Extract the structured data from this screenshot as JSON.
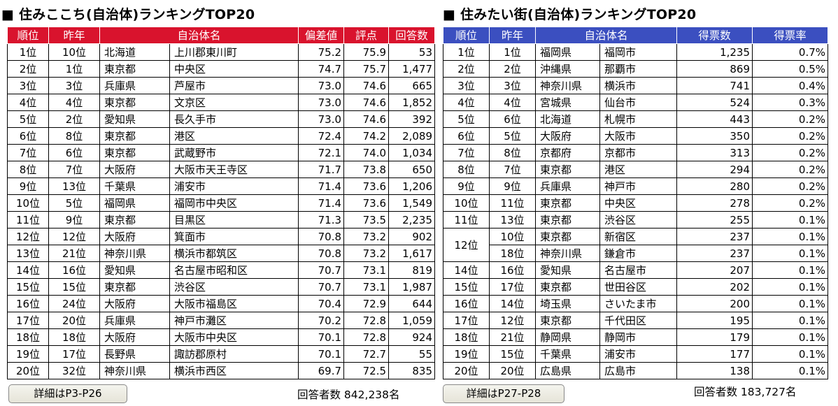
{
  "left": {
    "title": "■ 住みここち(自治体)ランキングTOP20",
    "headers": [
      "順位",
      "昨年",
      "自治体名",
      "偏差値",
      "評点",
      "回答数"
    ],
    "rows": [
      {
        "rank": "1位",
        "prev": "10位",
        "pref": "北海道",
        "city": "上川郡東川町",
        "dev": "75.2",
        "score": "75.9",
        "count": "53"
      },
      {
        "rank": "2位",
        "prev": "1位",
        "pref": "東京都",
        "city": "中央区",
        "dev": "74.7",
        "score": "75.7",
        "count": "1,477"
      },
      {
        "rank": "3位",
        "prev": "3位",
        "pref": "兵庫県",
        "city": "芦屋市",
        "dev": "73.0",
        "score": "74.6",
        "count": "665"
      },
      {
        "rank": "4位",
        "prev": "4位",
        "pref": "東京都",
        "city": "文京区",
        "dev": "73.0",
        "score": "74.6",
        "count": "1,852"
      },
      {
        "rank": "5位",
        "prev": "2位",
        "pref": "愛知県",
        "city": "長久手市",
        "dev": "73.0",
        "score": "74.6",
        "count": "392"
      },
      {
        "rank": "6位",
        "prev": "8位",
        "pref": "東京都",
        "city": "港区",
        "dev": "72.4",
        "score": "74.2",
        "count": "2,089"
      },
      {
        "rank": "7位",
        "prev": "6位",
        "pref": "東京都",
        "city": "武蔵野市",
        "dev": "72.1",
        "score": "74.0",
        "count": "1,034"
      },
      {
        "rank": "8位",
        "prev": "7位",
        "pref": "大阪府",
        "city": "大阪市天王寺区",
        "dev": "71.7",
        "score": "73.8",
        "count": "650"
      },
      {
        "rank": "9位",
        "prev": "13位",
        "pref": "千葉県",
        "city": "浦安市",
        "dev": "71.4",
        "score": "73.6",
        "count": "1,206"
      },
      {
        "rank": "10位",
        "prev": "5位",
        "pref": "福岡県",
        "city": "福岡市中央区",
        "dev": "71.4",
        "score": "73.6",
        "count": "1,549"
      },
      {
        "rank": "11位",
        "prev": "9位",
        "pref": "東京都",
        "city": "目黒区",
        "dev": "71.3",
        "score": "73.5",
        "count": "2,235"
      },
      {
        "rank": "12位",
        "prev": "12位",
        "pref": "大阪府",
        "city": "箕面市",
        "dev": "70.8",
        "score": "73.2",
        "count": "902"
      },
      {
        "rank": "13位",
        "prev": "21位",
        "pref": "神奈川県",
        "city": "横浜市都筑区",
        "dev": "70.8",
        "score": "73.2",
        "count": "1,617"
      },
      {
        "rank": "14位",
        "prev": "16位",
        "pref": "愛知県",
        "city": "名古屋市昭和区",
        "dev": "70.7",
        "score": "73.1",
        "count": "819"
      },
      {
        "rank": "15位",
        "prev": "15位",
        "pref": "東京都",
        "city": "渋谷区",
        "dev": "70.7",
        "score": "73.1",
        "count": "1,987"
      },
      {
        "rank": "16位",
        "prev": "24位",
        "pref": "大阪府",
        "city": "大阪市福島区",
        "dev": "70.4",
        "score": "72.9",
        "count": "644"
      },
      {
        "rank": "17位",
        "prev": "20位",
        "pref": "兵庫県",
        "city": "神戸市灘区",
        "dev": "70.2",
        "score": "72.8",
        "count": "1,059"
      },
      {
        "rank": "18位",
        "prev": "18位",
        "pref": "大阪府",
        "city": "大阪市中央区",
        "dev": "70.1",
        "score": "72.8",
        "count": "924"
      },
      {
        "rank": "19位",
        "prev": "17位",
        "pref": "長野県",
        "city": "諏訪郡原村",
        "dev": "70.1",
        "score": "72.7",
        "count": "55"
      },
      {
        "rank": "20位",
        "prev": "32位",
        "pref": "神奈川県",
        "city": "横浜市西区",
        "dev": "69.7",
        "score": "72.5",
        "count": "835"
      }
    ],
    "detail_button": "詳細はP3-P26",
    "respondents": "回答者数 842,238名"
  },
  "right": {
    "title": "■ 住みたい街(自治体)ランキングTOP20",
    "headers": [
      "順位",
      "昨年",
      "自治体名",
      "得票数",
      "得票率"
    ],
    "rows": [
      {
        "rank": "1位",
        "prev": "1位",
        "pref": "福岡県",
        "city": "福岡市",
        "votes": "1,235",
        "rate": "0.7%"
      },
      {
        "rank": "2位",
        "prev": "2位",
        "pref": "沖縄県",
        "city": "那覇市",
        "votes": "869",
        "rate": "0.5%"
      },
      {
        "rank": "3位",
        "prev": "3位",
        "pref": "神奈川県",
        "city": "横浜市",
        "votes": "741",
        "rate": "0.4%"
      },
      {
        "rank": "4位",
        "prev": "4位",
        "pref": "宮城県",
        "city": "仙台市",
        "votes": "524",
        "rate": "0.3%"
      },
      {
        "rank": "5位",
        "prev": "6位",
        "pref": "北海道",
        "city": "札幌市",
        "votes": "443",
        "rate": "0.2%"
      },
      {
        "rank": "6位",
        "prev": "5位",
        "pref": "大阪府",
        "city": "大阪市",
        "votes": "350",
        "rate": "0.2%"
      },
      {
        "rank": "7位",
        "prev": "8位",
        "pref": "京都府",
        "city": "京都市",
        "votes": "313",
        "rate": "0.2%"
      },
      {
        "rank": "8位",
        "prev": "7位",
        "pref": "東京都",
        "city": "港区",
        "votes": "294",
        "rate": "0.2%"
      },
      {
        "rank": "9位",
        "prev": "9位",
        "pref": "兵庫県",
        "city": "神戸市",
        "votes": "280",
        "rate": "0.2%"
      },
      {
        "rank": "10位",
        "prev": "11位",
        "pref": "東京都",
        "city": "中央区",
        "votes": "278",
        "rate": "0.2%"
      },
      {
        "rank": "11位",
        "prev": "13位",
        "pref": "東京都",
        "city": "渋谷区",
        "votes": "255",
        "rate": "0.1%"
      },
      {
        "rank": "12位",
        "prev": "10位",
        "pref": "東京都",
        "city": "新宿区",
        "votes": "237",
        "rate": "0.1%"
      },
      {
        "rank": "",
        "prev": "18位",
        "pref": "神奈川県",
        "city": "鎌倉市",
        "votes": "237",
        "rate": "0.1%"
      },
      {
        "rank": "14位",
        "prev": "16位",
        "pref": "愛知県",
        "city": "名古屋市",
        "votes": "207",
        "rate": "0.1%"
      },
      {
        "rank": "15位",
        "prev": "17位",
        "pref": "東京都",
        "city": "世田谷区",
        "votes": "202",
        "rate": "0.1%"
      },
      {
        "rank": "16位",
        "prev": "14位",
        "pref": "埼玉県",
        "city": "さいたま市",
        "votes": "200",
        "rate": "0.1%"
      },
      {
        "rank": "17位",
        "prev": "12位",
        "pref": "東京都",
        "city": "千代田区",
        "votes": "195",
        "rate": "0.1%"
      },
      {
        "rank": "18位",
        "prev": "21位",
        "pref": "静岡県",
        "city": "静岡市",
        "votes": "179",
        "rate": "0.1%"
      },
      {
        "rank": "19位",
        "prev": "15位",
        "pref": "千葉県",
        "city": "浦安市",
        "votes": "177",
        "rate": "0.1%"
      },
      {
        "rank": "20位",
        "prev": "20位",
        "pref": "広島県",
        "city": "広島市",
        "votes": "138",
        "rate": "0.1%"
      }
    ],
    "detail_button": "詳細はP27-P28",
    "respondents": "回答者数 183,727名"
  }
}
